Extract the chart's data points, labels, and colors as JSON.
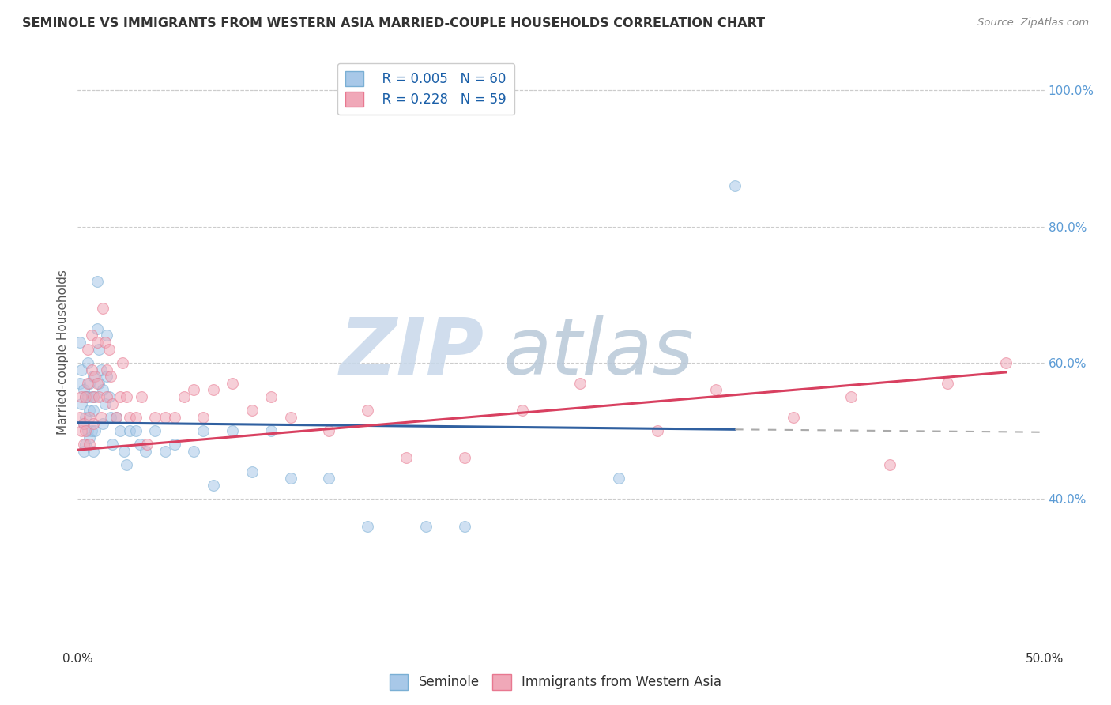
{
  "title": "SEMINOLE VS IMMIGRANTS FROM WESTERN ASIA MARRIED-COUPLE HOUSEHOLDS CORRELATION CHART",
  "source": "Source: ZipAtlas.com",
  "xlabel_seminole": "Seminole",
  "xlabel_immigrants": "Immigrants from Western Asia",
  "ylabel": "Married-couple Households",
  "xlim": [
    0,
    0.5
  ],
  "ylim": [
    0.18,
    1.05
  ],
  "xticks": [
    0.0,
    0.1,
    0.2,
    0.3,
    0.4,
    0.5
  ],
  "xtick_labels": [
    "0.0%",
    "",
    "",
    "",
    "",
    "50.0%"
  ],
  "yticks": [
    0.4,
    0.6,
    0.8,
    1.0
  ],
  "ytick_labels": [
    "40.0%",
    "60.0%",
    "80.0%",
    "100.0%"
  ],
  "grid_color": "#cccccc",
  "background_color": "#ffffff",
  "watermark_ZIP": "ZIP",
  "watermark_atlas": "atlas",
  "watermark_color_ZIP": "#c5d5e8",
  "watermark_color_atlas": "#c8cfe0",
  "legend_R1": "R = 0.005",
  "legend_N1": "N = 60",
  "legend_R2": "R = 0.228",
  "legend_N2": "N = 59",
  "blue_color": "#a8c8e8",
  "pink_color": "#f0a8b8",
  "blue_edge_color": "#7aafd4",
  "pink_edge_color": "#e87890",
  "blue_line_color": "#3060a0",
  "pink_line_color": "#d84060",
  "dot_size": 100,
  "dot_alpha": 0.55,
  "seminole_x": [
    0.001,
    0.001,
    0.002,
    0.002,
    0.003,
    0.003,
    0.003,
    0.004,
    0.004,
    0.004,
    0.005,
    0.005,
    0.005,
    0.006,
    0.006,
    0.006,
    0.007,
    0.007,
    0.008,
    0.008,
    0.008,
    0.009,
    0.009,
    0.01,
    0.01,
    0.011,
    0.011,
    0.012,
    0.013,
    0.013,
    0.014,
    0.015,
    0.015,
    0.016,
    0.017,
    0.018,
    0.02,
    0.022,
    0.024,
    0.025,
    0.027,
    0.03,
    0.032,
    0.035,
    0.04,
    0.045,
    0.05,
    0.06,
    0.065,
    0.07,
    0.08,
    0.09,
    0.1,
    0.11,
    0.13,
    0.15,
    0.18,
    0.2,
    0.28,
    0.34
  ],
  "seminole_y": [
    0.63,
    0.57,
    0.59,
    0.54,
    0.56,
    0.51,
    0.47,
    0.55,
    0.52,
    0.48,
    0.6,
    0.55,
    0.5,
    0.57,
    0.53,
    0.49,
    0.55,
    0.5,
    0.58,
    0.53,
    0.47,
    0.55,
    0.5,
    0.72,
    0.65,
    0.62,
    0.57,
    0.59,
    0.56,
    0.51,
    0.54,
    0.64,
    0.58,
    0.55,
    0.52,
    0.48,
    0.52,
    0.5,
    0.47,
    0.45,
    0.5,
    0.5,
    0.48,
    0.47,
    0.5,
    0.47,
    0.48,
    0.47,
    0.5,
    0.42,
    0.5,
    0.44,
    0.5,
    0.43,
    0.43,
    0.36,
    0.36,
    0.36,
    0.43,
    0.86
  ],
  "immigrants_x": [
    0.001,
    0.002,
    0.002,
    0.003,
    0.003,
    0.004,
    0.004,
    0.005,
    0.005,
    0.006,
    0.006,
    0.007,
    0.007,
    0.008,
    0.008,
    0.009,
    0.01,
    0.01,
    0.011,
    0.012,
    0.013,
    0.014,
    0.015,
    0.015,
    0.016,
    0.017,
    0.018,
    0.02,
    0.022,
    0.023,
    0.025,
    0.027,
    0.03,
    0.033,
    0.036,
    0.04,
    0.045,
    0.05,
    0.055,
    0.06,
    0.065,
    0.07,
    0.08,
    0.09,
    0.1,
    0.11,
    0.13,
    0.15,
    0.17,
    0.2,
    0.23,
    0.26,
    0.3,
    0.33,
    0.37,
    0.4,
    0.42,
    0.45,
    0.48
  ],
  "immigrants_y": [
    0.52,
    0.5,
    0.55,
    0.51,
    0.48,
    0.55,
    0.5,
    0.62,
    0.57,
    0.52,
    0.48,
    0.64,
    0.59,
    0.55,
    0.51,
    0.58,
    0.63,
    0.57,
    0.55,
    0.52,
    0.68,
    0.63,
    0.59,
    0.55,
    0.62,
    0.58,
    0.54,
    0.52,
    0.55,
    0.6,
    0.55,
    0.52,
    0.52,
    0.55,
    0.48,
    0.52,
    0.52,
    0.52,
    0.55,
    0.56,
    0.52,
    0.56,
    0.57,
    0.53,
    0.55,
    0.52,
    0.5,
    0.53,
    0.46,
    0.46,
    0.53,
    0.57,
    0.5,
    0.56,
    0.52,
    0.55,
    0.45,
    0.57,
    0.6
  ],
  "blue_regline_x": [
    0.0,
    0.34
  ],
  "blue_regline_y": [
    0.512,
    0.502
  ],
  "pink_regline_x": [
    0.0,
    0.48
  ],
  "pink_regline_y": [
    0.472,
    0.586
  ],
  "dash_regline_x": [
    0.34,
    0.5
  ],
  "dash_regline_y": [
    0.502,
    0.498
  ]
}
